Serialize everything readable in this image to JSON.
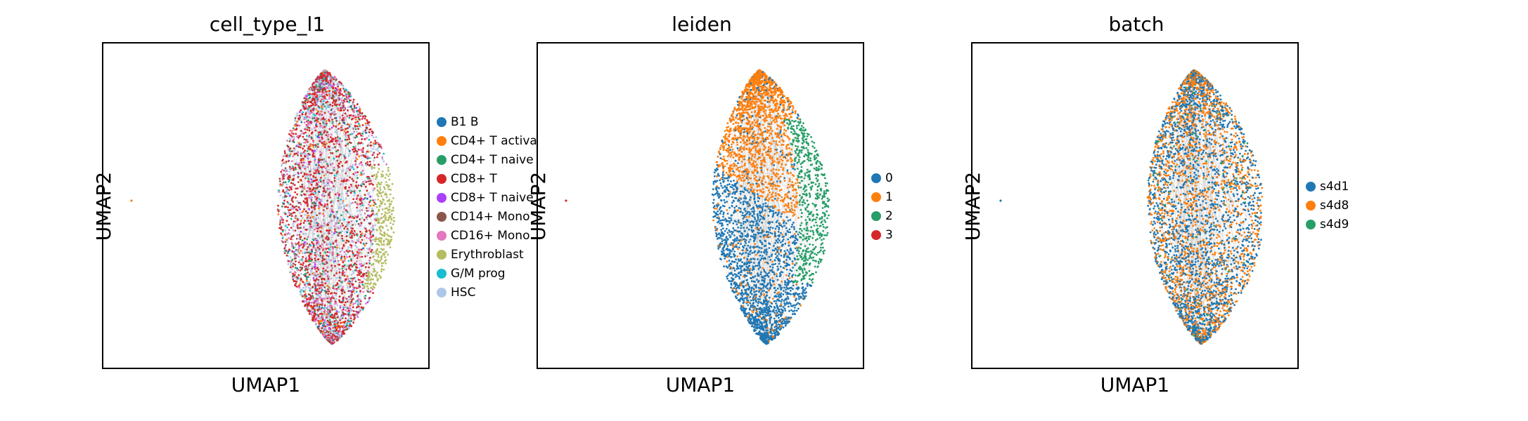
{
  "chart_data": [
    {
      "type": "scatter",
      "title": "cell_type_l1",
      "xlabel": "UMAP1",
      "ylabel": "UMAP2",
      "legend_position": "right",
      "colors": [
        "#1f77b4",
        "#ff7f0e",
        "#279e68",
        "#d62728",
        "#aa40fc",
        "#8c564b",
        "#e377c2",
        "#b5bd61",
        "#17becf",
        "#aec7e8"
      ],
      "series": [
        {
          "name": "B1 B"
        },
        {
          "name": "CD4+ T activa"
        },
        {
          "name": "CD4+ T naive"
        },
        {
          "name": "CD8+ T"
        },
        {
          "name": "CD8+ T naive"
        },
        {
          "name": "CD14+ Mono"
        },
        {
          "name": "CD16+ Mono"
        },
        {
          "name": "Erythroblast"
        },
        {
          "name": "G/M prog"
        },
        {
          "name": "HSC"
        }
      ]
    },
    {
      "type": "scatter",
      "title": "leiden",
      "xlabel": "UMAP1",
      "ylabel": "UMAP2",
      "legend_position": "right",
      "colors": [
        "#1f77b4",
        "#ff7f0e",
        "#279e68",
        "#d62728"
      ],
      "series": [
        {
          "name": "0"
        },
        {
          "name": "1"
        },
        {
          "name": "2"
        },
        {
          "name": "3"
        }
      ]
    },
    {
      "type": "scatter",
      "title": "batch",
      "xlabel": "UMAP1",
      "ylabel": "UMAP2",
      "legend_position": "right",
      "colors": [
        "#1f77b4",
        "#ff7f0e",
        "#279e68"
      ],
      "series": [
        {
          "name": "s4d1"
        },
        {
          "name": "s4d8"
        },
        {
          "name": "s4d9"
        }
      ]
    }
  ]
}
